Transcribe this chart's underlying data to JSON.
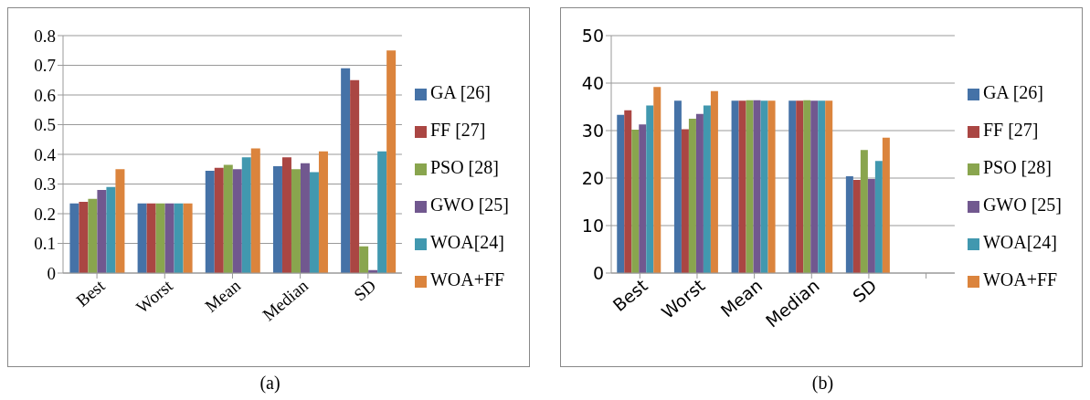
{
  "chart_data": [
    {
      "type": "bar",
      "annotations": [
        "(a)"
      ],
      "categories": [
        "Best",
        "Worst",
        "Mean",
        "Median",
        "SD"
      ],
      "series": [
        {
          "name": "GA [26]",
          "color": "#4572a7",
          "values": [
            0.235,
            0.235,
            0.345,
            0.36,
            0.69
          ]
        },
        {
          "name": "FF [27]",
          "color": "#aa4643",
          "values": [
            0.24,
            0.235,
            0.355,
            0.39,
            0.65
          ]
        },
        {
          "name": "PSO [28]",
          "color": "#89a54e",
          "values": [
            0.25,
            0.235,
            0.365,
            0.35,
            0.09
          ]
        },
        {
          "name": "GWO [25]",
          "color": "#71588f",
          "values": [
            0.28,
            0.235,
            0.35,
            0.37,
            0.01
          ]
        },
        {
          "name": "WOA[24]",
          "color": "#4198af",
          "values": [
            0.29,
            0.235,
            0.39,
            0.34,
            0.41
          ]
        },
        {
          "name": "WOA+FF",
          "color": "#db843d",
          "values": [
            0.35,
            0.235,
            0.42,
            0.41,
            0.75
          ]
        }
      ],
      "ylim": [
        0,
        0.8
      ],
      "yticks": [
        0,
        0.1,
        0.2,
        0.3,
        0.4,
        0.5,
        0.6,
        0.7,
        0.8
      ],
      "grid": "y",
      "legend": "right"
    },
    {
      "type": "bar",
      "annotations": [
        "(b)"
      ],
      "categories": [
        "Best",
        "Worst",
        "Mean",
        "Median",
        "SD",
        null
      ],
      "series": [
        {
          "name": "GA [26]",
          "color": "#4572a7",
          "values": [
            33.3,
            36.3,
            36.3,
            36.3,
            20.4,
            null
          ]
        },
        {
          "name": "FF [27]",
          "color": "#aa4643",
          "values": [
            34.3,
            30.3,
            36.3,
            36.3,
            19.6,
            null
          ]
        },
        {
          "name": "PSO [28]",
          "color": "#89a54e",
          "values": [
            30.2,
            32.5,
            36.4,
            36.4,
            25.9,
            null
          ]
        },
        {
          "name": "GWO [25]",
          "color": "#71588f",
          "values": [
            31.3,
            33.5,
            36.4,
            36.3,
            19.8,
            null
          ]
        },
        {
          "name": "WOA[24]",
          "color": "#4198af",
          "values": [
            35.3,
            35.3,
            36.3,
            36.3,
            23.6,
            null
          ]
        },
        {
          "name": "WOA+FF",
          "color": "#db843d",
          "values": [
            39.2,
            38.3,
            36.3,
            36.3,
            28.5,
            null
          ]
        }
      ],
      "ylim": [
        0,
        50
      ],
      "yticks": [
        0,
        10,
        20,
        30,
        40,
        50
      ],
      "grid": "y",
      "legend": "right"
    }
  ]
}
